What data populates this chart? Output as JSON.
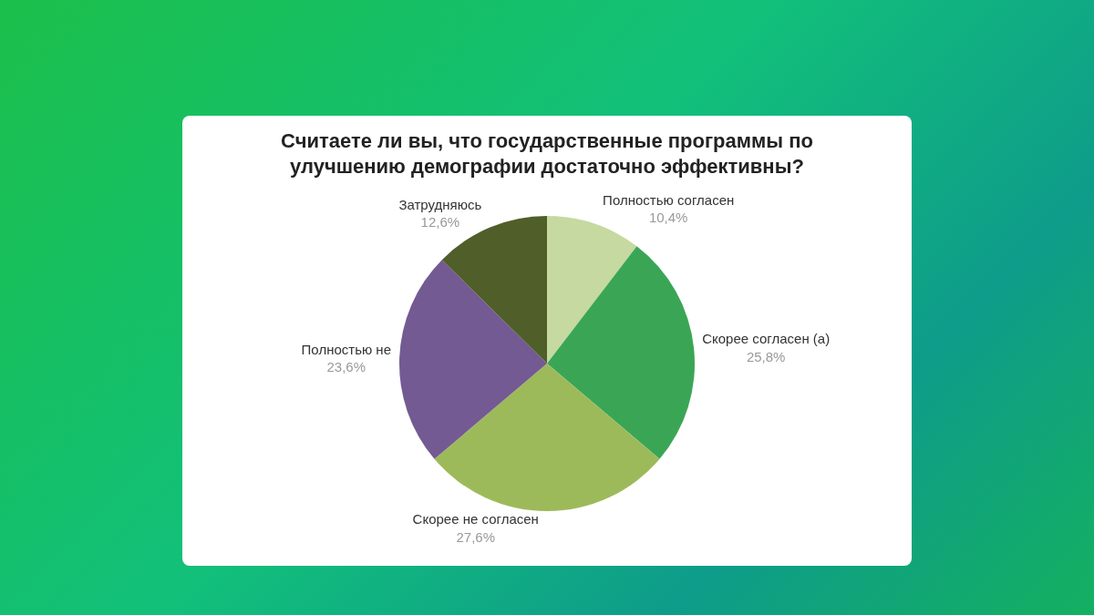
{
  "chart_data": {
    "type": "pie",
    "title": "Считаете ли вы, что государственные программы по улучшению демографии достаточно эффективны?",
    "categories": [
      "Полностью согласен",
      "Скорее согласен (а)",
      "Скорее не согласен",
      "Полностью не",
      "Затрудняюсь"
    ],
    "values": [
      10.4,
      25.8,
      27.6,
      23.6,
      12.6
    ],
    "value_labels": [
      "10,4%",
      "25,8%",
      "27,6%",
      "23,6%",
      "12,6%"
    ],
    "colors": [
      "#c5d9a0",
      "#3aa655",
      "#9dba5a",
      "#735a93",
      "#505e2a"
    ],
    "legend": false
  }
}
